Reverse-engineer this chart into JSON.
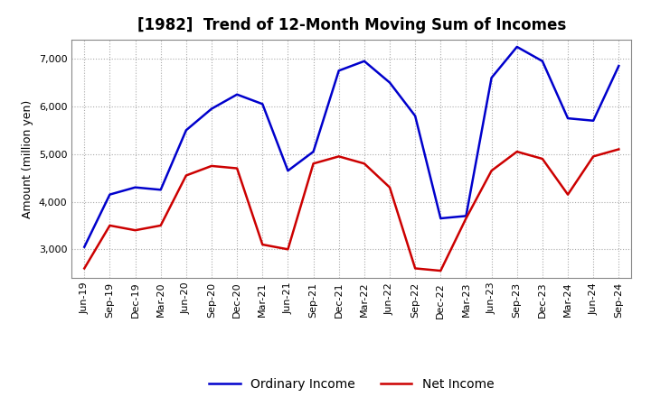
{
  "title": "[1982]  Trend of 12-Month Moving Sum of Incomes",
  "ylabel": "Amount (million yen)",
  "ylim": [
    2400,
    7400
  ],
  "yticks": [
    3000,
    4000,
    5000,
    6000,
    7000
  ],
  "x_labels": [
    "Jun-19",
    "Sep-19",
    "Dec-19",
    "Mar-20",
    "Jun-20",
    "Sep-20",
    "Dec-20",
    "Mar-21",
    "Jun-21",
    "Sep-21",
    "Dec-21",
    "Mar-22",
    "Jun-22",
    "Sep-22",
    "Dec-22",
    "Mar-23",
    "Jun-23",
    "Sep-23",
    "Dec-23",
    "Mar-24",
    "Jun-24",
    "Sep-24"
  ],
  "ordinary_income": [
    3050,
    4150,
    4300,
    4250,
    5500,
    5950,
    6250,
    6050,
    4650,
    5050,
    6750,
    6950,
    6500,
    5800,
    3650,
    3700,
    6600,
    7250,
    6950,
    5750,
    5700,
    6850
  ],
  "net_income": [
    2600,
    3500,
    3400,
    3500,
    4550,
    4750,
    4700,
    3100,
    3000,
    4800,
    4950,
    4800,
    4300,
    2600,
    2550,
    3650,
    4650,
    5050,
    4900,
    4150,
    4950,
    5100
  ],
  "ordinary_color": "#0000cc",
  "net_color": "#cc0000",
  "line_width": 1.8,
  "title_fontsize": 12,
  "label_fontsize": 9,
  "tick_fontsize": 8,
  "grid_color": "#aaaaaa",
  "background_color": "#ffffff"
}
